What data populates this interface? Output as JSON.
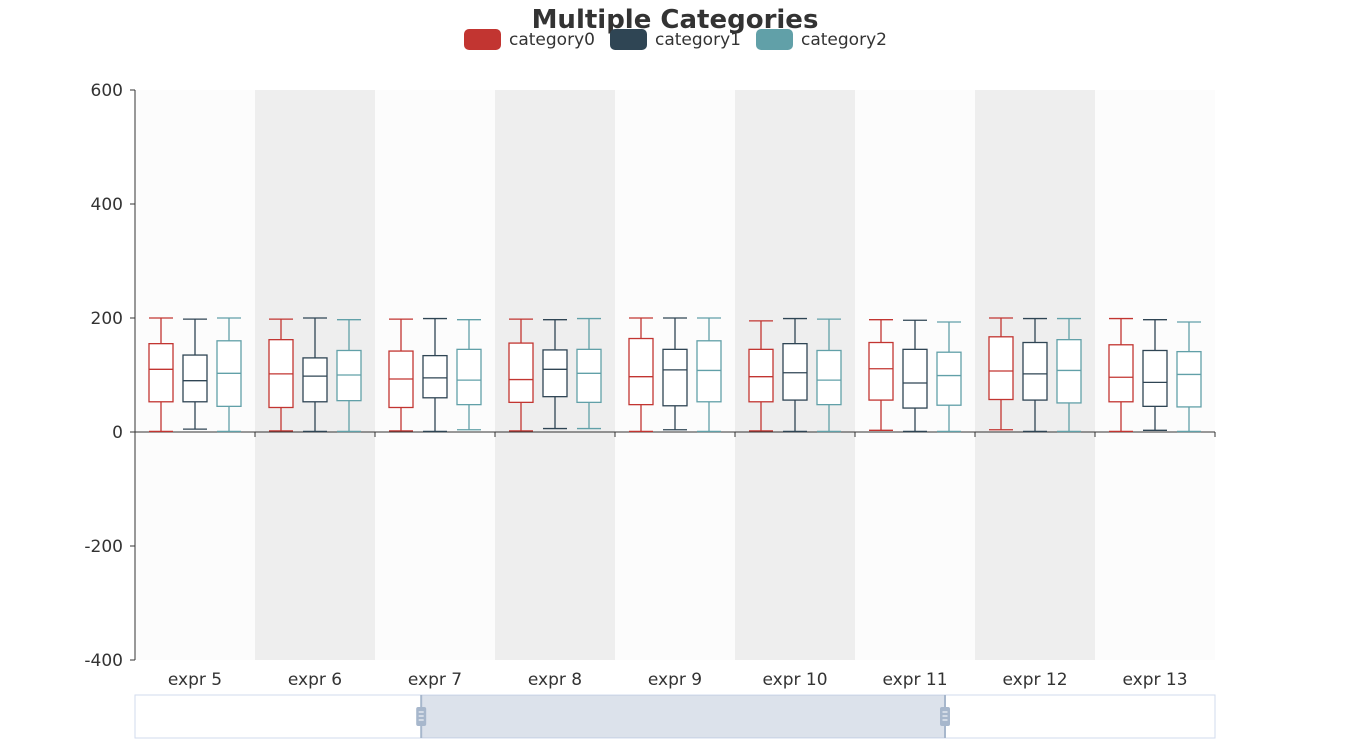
{
  "chart_data": {
    "type": "boxplot",
    "title": "Multiple Categories",
    "categories": [
      "expr 5",
      "expr 6",
      "expr 7",
      "expr 8",
      "expr 9",
      "expr 10",
      "expr 11",
      "expr 12",
      "expr 13"
    ],
    "ylim": [
      -400,
      600
    ],
    "yticks": [
      "600",
      "400",
      "200",
      "0",
      "-200",
      "-400"
    ],
    "ytick_values": [
      600,
      400,
      200,
      0,
      -200,
      -400
    ],
    "legend_position": "top-center",
    "series": [
      {
        "name": "category0",
        "color": "#c23531",
        "boxes": [
          [
            1,
            53,
            110,
            155,
            200
          ],
          [
            2,
            43,
            102,
            162,
            198
          ],
          [
            2,
            43,
            93,
            142,
            198
          ],
          [
            2,
            52,
            92,
            156,
            198
          ],
          [
            1,
            48,
            97,
            164,
            200
          ],
          [
            2,
            53,
            97,
            145,
            195
          ],
          [
            3,
            56,
            111,
            157,
            197
          ],
          [
            4,
            57,
            107,
            167,
            200
          ],
          [
            1,
            53,
            96,
            153,
            199
          ]
        ]
      },
      {
        "name": "category1",
        "color": "#2f4554",
        "boxes": [
          [
            5,
            53,
            90,
            135,
            198
          ],
          [
            1,
            53,
            98,
            130,
            200
          ],
          [
            1,
            60,
            95,
            134,
            199
          ],
          [
            6,
            62,
            110,
            144,
            197
          ],
          [
            4,
            46,
            109,
            145,
            200
          ],
          [
            1,
            56,
            104,
            155,
            199
          ],
          [
            1,
            42,
            86,
            145,
            196
          ],
          [
            1,
            56,
            102,
            157,
            199
          ],
          [
            3,
            45,
            87,
            143,
            197
          ]
        ]
      },
      {
        "name": "category2",
        "color": "#61a0a8",
        "boxes": [
          [
            1,
            45,
            103,
            160,
            200
          ],
          [
            1,
            55,
            100,
            143,
            197
          ],
          [
            4,
            48,
            91,
            145,
            197
          ],
          [
            6,
            52,
            103,
            145,
            199
          ],
          [
            1,
            53,
            108,
            160,
            200
          ],
          [
            1,
            48,
            91,
            143,
            198
          ],
          [
            1,
            47,
            99,
            140,
            193
          ],
          [
            1,
            51,
            108,
            162,
            199
          ],
          [
            1,
            44,
            101,
            141,
            193
          ]
        ]
      }
    ],
    "data_zoom": {
      "start": 0.265,
      "end": 0.75
    }
  }
}
